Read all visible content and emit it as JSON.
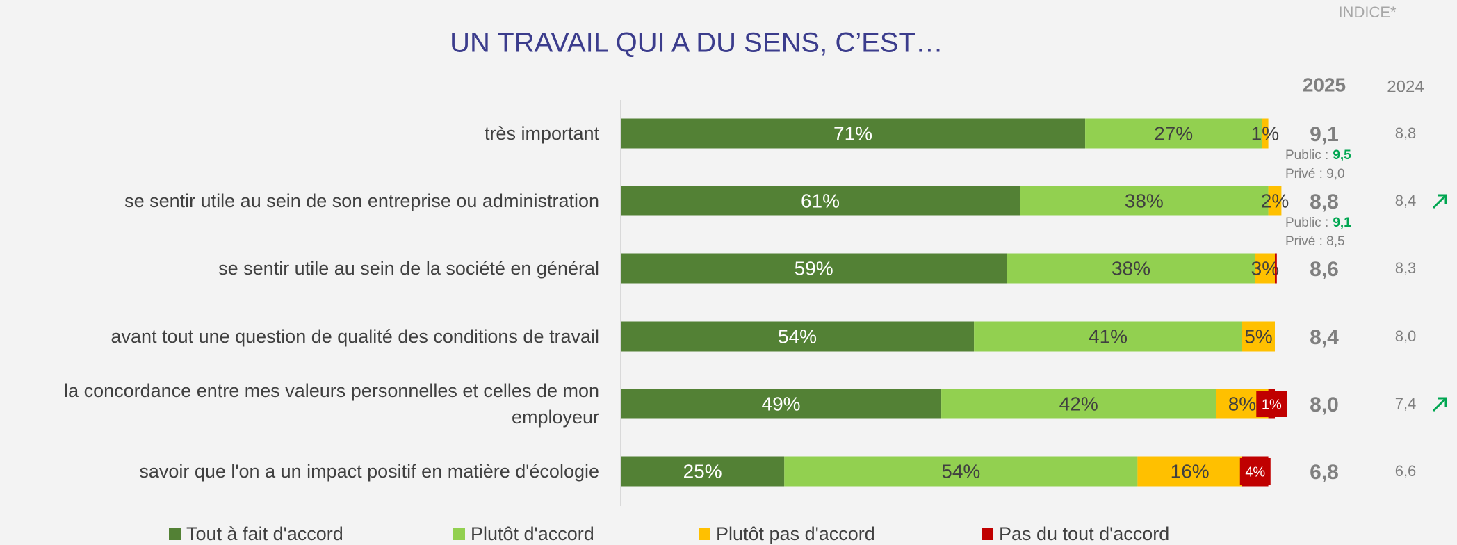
{
  "chart_data": {
    "type": "stacked_barh",
    "title": "UN TRAVAIL QUI A DU SENS, C’EST…",
    "categories": [
      "très important",
      "se sentir utile au sein de son entreprise ou administration",
      "se sentir utile au sein de la société en général",
      "avant tout une question de qualité des conditions de travail",
      "la concordance entre mes valeurs personnelles et celles de mon employeur",
      "savoir que l'on a un impact positif en matière d'écologie"
    ],
    "series": [
      {
        "name": "Tout à fait d'accord",
        "color": "#538135",
        "values": [
          71,
          61,
          59,
          54,
          49,
          25
        ],
        "value_labels": [
          "71%",
          "61%",
          "59%",
          "54%",
          "49%",
          "25%"
        ]
      },
      {
        "name": "Plutôt d'accord",
        "color": "#92d050",
        "values": [
          27,
          38,
          38,
          41,
          42,
          54
        ],
        "value_labels": [
          "27%",
          "38%",
          "38%",
          "41%",
          "42%",
          "54%"
        ]
      },
      {
        "name": "Plutôt pas d'accord",
        "color": "#ffc000",
        "values": [
          1,
          2,
          3,
          5,
          8,
          16
        ],
        "value_labels": [
          "1%",
          "2%",
          "3%",
          "5%",
          "8%",
          "16%"
        ]
      },
      {
        "name": "Pas du tout d'accord",
        "color": "#c00000",
        "values": [
          null,
          null,
          0.3,
          null,
          1,
          4
        ],
        "value_labels": [
          null,
          null,
          null,
          null,
          "1%",
          "4%"
        ]
      }
    ],
    "xlim": [
      0,
      100
    ],
    "legend": "bottom",
    "index": {
      "header": "INDICE*",
      "columns": [
        "2025",
        "2024"
      ],
      "values_2025": [
        "9,1",
        "8,8",
        "8,6",
        "8,4",
        "8,0",
        "6,8"
      ],
      "values_2024": [
        "8,8",
        "8,4",
        "8,3",
        "8,0",
        "7,4",
        "6,6"
      ],
      "trend_up": [
        false,
        true,
        false,
        false,
        true,
        false
      ],
      "subnotes": [
        {
          "public_label": "Public :",
          "public_value": "9,5",
          "prive": "Privé : 9,0"
        },
        {
          "public_label": "Public :",
          "public_value": "9,1",
          "prive": "Privé : 8,5"
        },
        null,
        null,
        null,
        null
      ]
    }
  }
}
